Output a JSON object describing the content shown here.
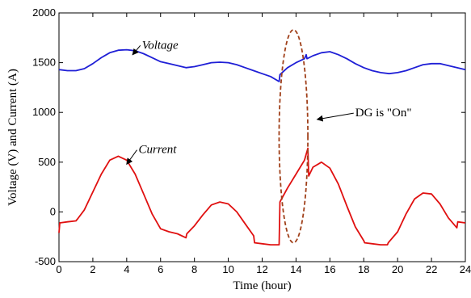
{
  "chart_data": {
    "type": "line",
    "xlabel": "Time (hour)",
    "ylabel": "Voltage (V) and Current (A)",
    "xlim": [
      0,
      24
    ],
    "ylim": [
      -500,
      2000
    ],
    "xticks": [
      0,
      2,
      4,
      6,
      8,
      10,
      12,
      14,
      16,
      18,
      20,
      22,
      24
    ],
    "yticks": [
      -500,
      0,
      500,
      1000,
      1500,
      2000
    ],
    "grid": false,
    "series": [
      {
        "name": "Voltage",
        "color": "#1f1fd6",
        "x": [
          0,
          0.5,
          1,
          1.5,
          2,
          2.5,
          3,
          3.5,
          4,
          4.5,
          5,
          5.5,
          6,
          6.5,
          7,
          7.5,
          8,
          8.5,
          9,
          9.5,
          10,
          10.5,
          11,
          11.5,
          12,
          12.5,
          13,
          13.05,
          13.5,
          14,
          14.5,
          14.6,
          14.65,
          15,
          15.5,
          16,
          16.5,
          17,
          17.5,
          18,
          18.5,
          19,
          19.5,
          20,
          20.5,
          21,
          21.5,
          22,
          22.5,
          23,
          23.5,
          24
        ],
        "y": [
          1430,
          1420,
          1420,
          1440,
          1490,
          1550,
          1600,
          1625,
          1630,
          1620,
          1590,
          1550,
          1510,
          1490,
          1470,
          1450,
          1460,
          1480,
          1500,
          1505,
          1500,
          1480,
          1450,
          1420,
          1390,
          1360,
          1310,
          1380,
          1450,
          1500,
          1540,
          1580,
          1540,
          1570,
          1600,
          1610,
          1580,
          1540,
          1490,
          1450,
          1420,
          1400,
          1390,
          1400,
          1420,
          1450,
          1480,
          1490,
          1490,
          1470,
          1450,
          1430
        ]
      },
      {
        "name": "Current",
        "color": "#e01010",
        "x": [
          0,
          0.05,
          0.5,
          1,
          1.1,
          1.5,
          2,
          2.5,
          3,
          3.5,
          4,
          4.5,
          5,
          5.5,
          6,
          6.5,
          7,
          7.5,
          7.55,
          8,
          8.5,
          9,
          9.5,
          10,
          10.5,
          11,
          11.5,
          11.55,
          12,
          12.5,
          13,
          13.05,
          13.5,
          14,
          14.5,
          14.7,
          14.75,
          15,
          15.5,
          16,
          16.5,
          17,
          17.5,
          18,
          18.05,
          18.5,
          19,
          19.4,
          19.45,
          20,
          20.5,
          21,
          21.5,
          22,
          22.5,
          23,
          23.5,
          23.55,
          24
        ],
        "y": [
          -210,
          -110,
          -100,
          -90,
          -70,
          20,
          200,
          380,
          520,
          560,
          520,
          380,
          180,
          -20,
          -170,
          -200,
          -220,
          -260,
          -220,
          -140,
          -30,
          70,
          100,
          80,
          0,
          -120,
          -240,
          -310,
          -320,
          -330,
          -330,
          100,
          240,
          380,
          520,
          640,
          360,
          450,
          500,
          440,
          280,
          60,
          -150,
          -290,
          -310,
          -320,
          -330,
          -330,
          -310,
          -200,
          -20,
          130,
          190,
          180,
          80,
          -60,
          -160,
          -100,
          -110
        ]
      }
    ],
    "annotations": [
      {
        "text": "Voltage",
        "italic": true,
        "x": 4.9,
        "y": 1640,
        "arrow_to": [
          4.35,
          1580
        ]
      },
      {
        "text": "Current",
        "italic": true,
        "x": 4.7,
        "y": 590,
        "arrow_to": [
          4.0,
          480
        ]
      },
      {
        "text": "DG is \"On\"",
        "italic": false,
        "x": 17.5,
        "y": 960,
        "arrow_to": [
          15.25,
          930
        ]
      }
    ],
    "ellipse": {
      "cx": 13.85,
      "cy": 760,
      "rx": 0.85,
      "ry": 1070,
      "color": "#a0401a",
      "dash": true
    }
  }
}
